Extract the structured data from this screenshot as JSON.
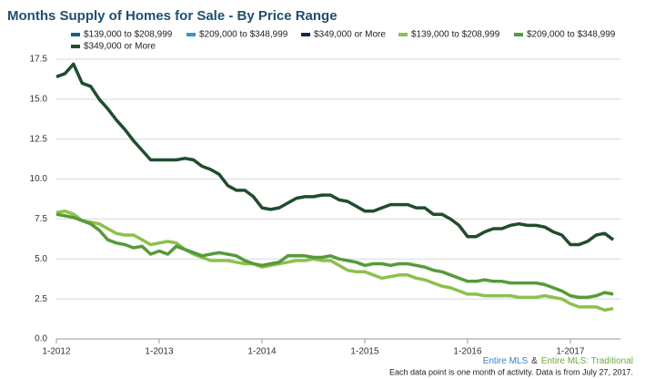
{
  "chart_data": {
    "type": "line",
    "title": "Months Supply of Homes for Sale - By Price Range",
    "categories": [
      "1-2012",
      null,
      null,
      null,
      null,
      null,
      null,
      null,
      null,
      null,
      null,
      null,
      "1-2013",
      null,
      null,
      null,
      null,
      null,
      null,
      null,
      null,
      null,
      null,
      null,
      "1-2014",
      null,
      null,
      null,
      null,
      null,
      null,
      null,
      null,
      null,
      null,
      null,
      "1-2015",
      null,
      null,
      null,
      null,
      null,
      null,
      null,
      null,
      null,
      null,
      null,
      "1-2016",
      null,
      null,
      null,
      null,
      null,
      null,
      null,
      null,
      null,
      null,
      null,
      "1-2017",
      null,
      null,
      null,
      null,
      null
    ],
    "ylim": [
      0,
      17.5
    ],
    "yticks": [
      {
        "value": 0,
        "label": "0.0"
      },
      2.5,
      {
        "value": 5,
        "label": "5.0"
      },
      7.5,
      {
        "value": 10,
        "label": "10.0"
      },
      12.5,
      {
        "value": 15,
        "label": "15.0"
      },
      17.5
    ],
    "grid": true,
    "series": [
      {
        "name": "$139,000 to $208,999",
        "color": "#1f5c8a",
        "values": [
          null,
          null,
          null,
          null,
          null,
          null,
          null,
          null,
          null,
          null,
          null,
          null,
          null,
          null,
          null,
          null,
          null,
          null,
          null,
          null,
          null,
          null,
          null,
          null,
          null,
          null,
          null,
          null,
          null,
          null,
          null,
          null,
          null,
          null,
          null,
          null,
          null,
          null,
          null,
          null,
          null,
          null,
          null,
          null,
          null,
          null,
          null,
          null,
          null,
          null,
          null,
          null,
          null,
          null,
          null,
          null,
          null,
          null,
          null,
          null,
          null,
          null,
          null,
          null,
          null,
          null
        ]
      },
      {
        "name": "$209,000 to $348,999",
        "color": "#3a93cf",
        "values": [
          null,
          null,
          null,
          null,
          null,
          null,
          null,
          null,
          null,
          null,
          null,
          null,
          null,
          null,
          null,
          null,
          null,
          null,
          null,
          null,
          null,
          null,
          null,
          null,
          null,
          null,
          null,
          null,
          null,
          null,
          null,
          null,
          null,
          null,
          null,
          null,
          null,
          null,
          null,
          null,
          null,
          null,
          null,
          null,
          null,
          null,
          null,
          null,
          null,
          null,
          null,
          null,
          null,
          null,
          null,
          null,
          null,
          null,
          null,
          null,
          null,
          null,
          null,
          null,
          null,
          null
        ]
      },
      {
        "name": "$349,000 or More",
        "color": "#142a44",
        "values": [
          null,
          null,
          null,
          null,
          null,
          null,
          null,
          null,
          null,
          null,
          null,
          null,
          null,
          null,
          null,
          null,
          null,
          null,
          null,
          null,
          null,
          null,
          null,
          null,
          null,
          null,
          null,
          null,
          null,
          null,
          null,
          null,
          null,
          null,
          null,
          null,
          null,
          null,
          null,
          null,
          null,
          null,
          null,
          null,
          null,
          null,
          null,
          null,
          null,
          null,
          null,
          null,
          null,
          null,
          null,
          null,
          null,
          null,
          null,
          null,
          null,
          null,
          null,
          null,
          null,
          null
        ]
      },
      {
        "name": "$139,000 to $208,999",
        "color": "#8dc04d",
        "values": [
          7.9,
          8.0,
          7.8,
          7.4,
          7.3,
          7.2,
          6.9,
          6.6,
          6.5,
          6.5,
          6.2,
          5.9,
          6.0,
          6.1,
          6.0,
          5.6,
          5.3,
          5.1,
          4.9,
          4.9,
          4.9,
          4.8,
          4.7,
          4.7,
          4.5,
          4.6,
          4.7,
          4.8,
          4.9,
          4.9,
          5.0,
          4.9,
          4.9,
          4.6,
          4.3,
          4.2,
          4.2,
          4.0,
          3.8,
          3.9,
          4.0,
          4.0,
          3.8,
          3.7,
          3.5,
          3.3,
          3.2,
          3.0,
          2.8,
          2.8,
          2.7,
          2.7,
          2.7,
          2.7,
          2.6,
          2.6,
          2.6,
          2.7,
          2.6,
          2.5,
          2.2,
          2.0,
          2.0,
          2.0,
          1.8,
          1.9
        ]
      },
      {
        "name": "$209,000 to $348,999",
        "color": "#579a3a",
        "values": [
          7.8,
          7.7,
          7.6,
          7.4,
          7.2,
          6.8,
          6.2,
          6.0,
          5.9,
          5.7,
          5.8,
          5.3,
          5.5,
          5.3,
          5.8,
          5.6,
          5.4,
          5.2,
          5.3,
          5.4,
          5.3,
          5.2,
          4.9,
          4.7,
          4.6,
          4.7,
          4.8,
          5.2,
          5.2,
          5.2,
          5.1,
          5.1,
          5.2,
          5.0,
          4.9,
          4.8,
          4.6,
          4.7,
          4.7,
          4.6,
          4.7,
          4.7,
          4.6,
          4.5,
          4.3,
          4.2,
          4.0,
          3.8,
          3.6,
          3.6,
          3.7,
          3.6,
          3.6,
          3.5,
          3.5,
          3.5,
          3.5,
          3.4,
          3.2,
          3.0,
          2.7,
          2.6,
          2.6,
          2.7,
          2.9,
          2.8
        ]
      },
      {
        "name": "$349,000 or More",
        "color": "#1f4d2e",
        "values": [
          16.4,
          16.6,
          17.2,
          16.0,
          15.8,
          15.0,
          14.4,
          13.7,
          13.1,
          12.4,
          11.8,
          11.2,
          11.2,
          11.2,
          11.2,
          11.3,
          11.2,
          10.8,
          10.6,
          10.3,
          9.6,
          9.3,
          9.3,
          8.9,
          8.2,
          8.1,
          8.2,
          8.5,
          8.8,
          8.9,
          8.9,
          9.0,
          9.0,
          8.7,
          8.6,
          8.3,
          8.0,
          8.0,
          8.2,
          8.4,
          8.4,
          8.4,
          8.2,
          8.2,
          7.8,
          7.8,
          7.5,
          7.1,
          6.4,
          6.4,
          6.7,
          6.9,
          6.9,
          7.1,
          7.2,
          7.1,
          7.1,
          7.0,
          6.7,
          6.5,
          5.9,
          5.9,
          6.1,
          6.5,
          6.6,
          6.2
        ]
      }
    ],
    "source_labels": [
      {
        "text": "Entire MLS",
        "color": "#3a7fc0"
      },
      {
        "text": "&",
        "color": "#333333"
      },
      {
        "text": "Entire MLS: Traditional",
        "color": "#6aab3f"
      }
    ],
    "footnote": "Each data point is one month of activity. Data is from July 27, 2017."
  }
}
